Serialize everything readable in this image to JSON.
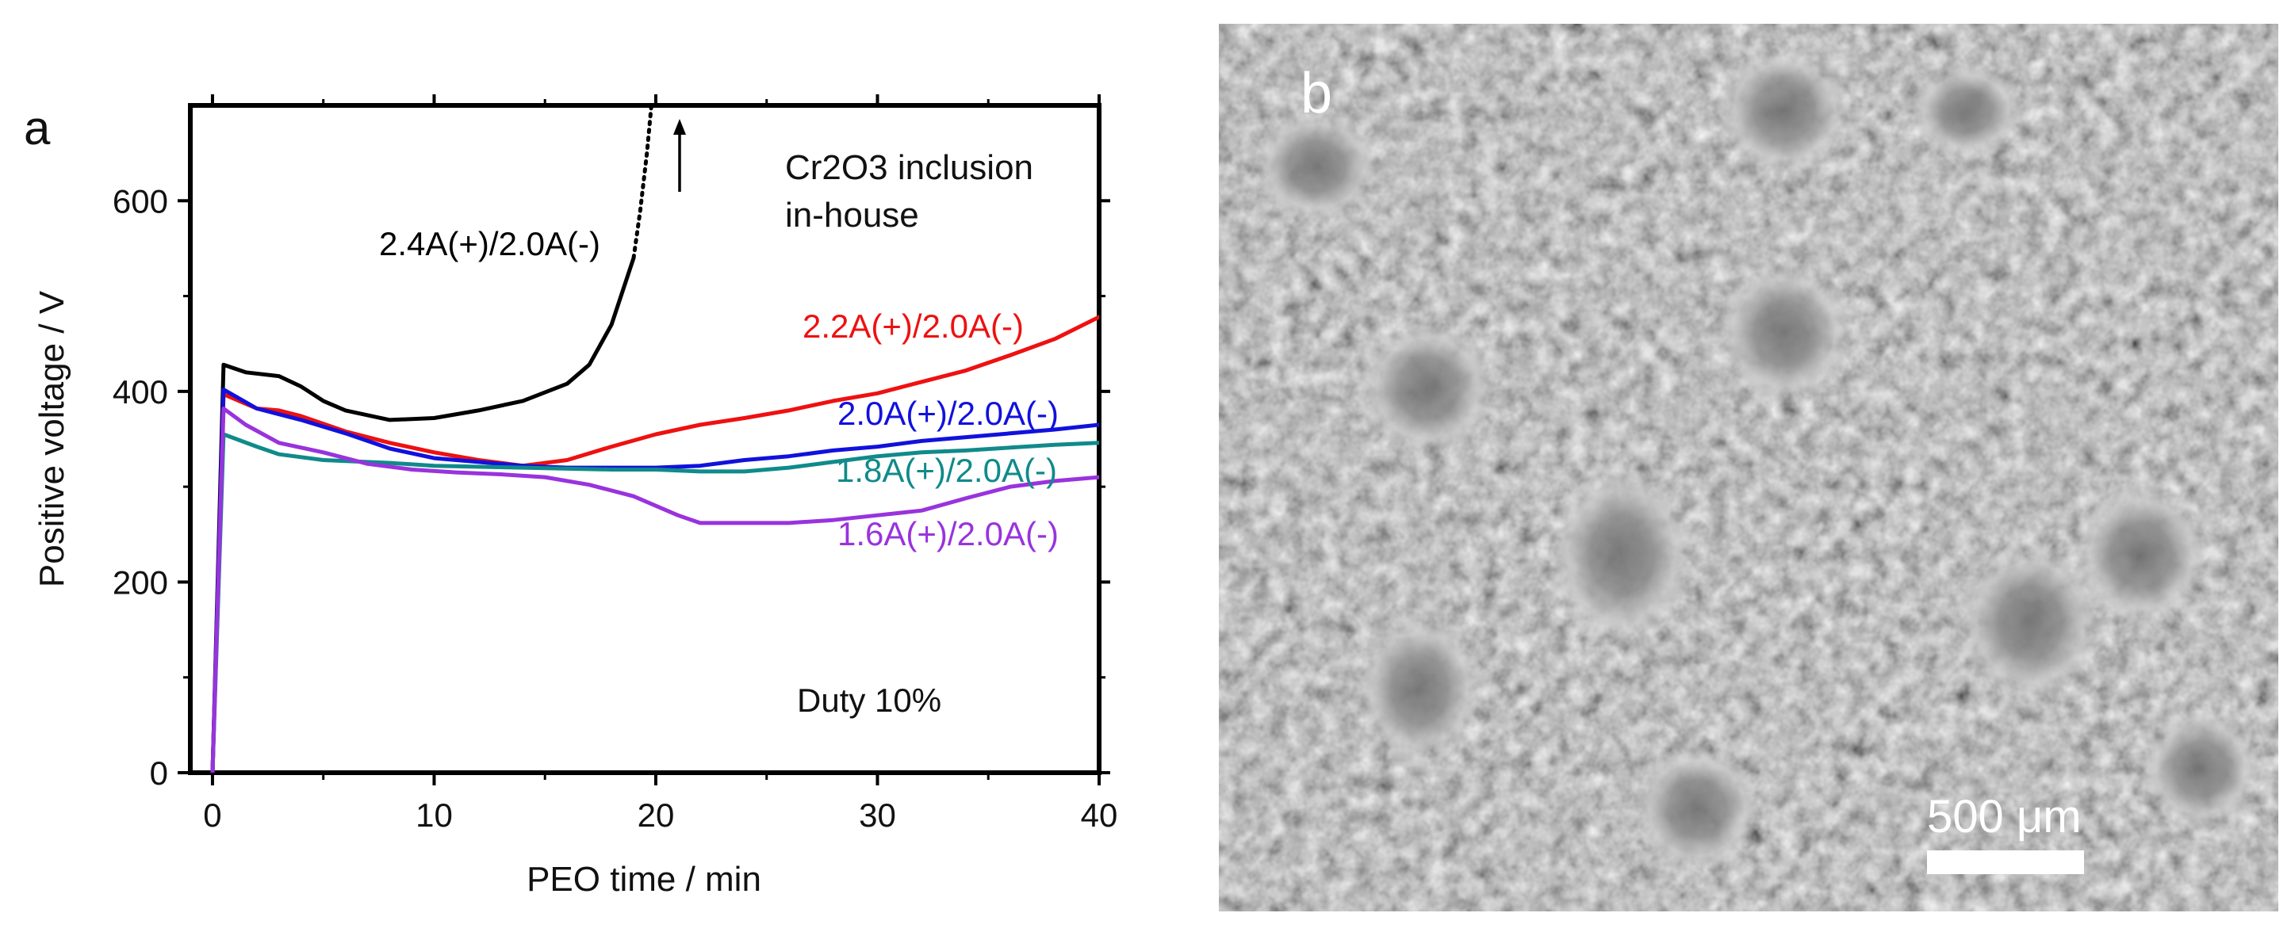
{
  "panel_a": {
    "label": "a",
    "annotation_material": [
      "Cr2O3 inclusion",
      "in-house"
    ],
    "annotation_duty": "Duty 10%"
  },
  "panel_b": {
    "label": "b",
    "scale_bar_label": "500 μm"
  },
  "chart_data": {
    "type": "line",
    "title": "",
    "xlabel": "PEO time / min",
    "ylabel": "Positive voltage / V",
    "xlim": [
      -1,
      40
    ],
    "ylim": [
      0,
      700
    ],
    "xticks": [
      0,
      10,
      20,
      30,
      40
    ],
    "yticks": [
      0,
      200,
      400,
      600
    ],
    "grid": false,
    "legend": "inline labels",
    "series": [
      {
        "name": "2.4A(+)/2.0A(-)",
        "color": "#000000",
        "points": [
          [
            0,
            0
          ],
          [
            0.5,
            428
          ],
          [
            1.5,
            420
          ],
          [
            3,
            416
          ],
          [
            4,
            405
          ],
          [
            5,
            390
          ],
          [
            6,
            380
          ],
          [
            8,
            370
          ],
          [
            10,
            372
          ],
          [
            12,
            380
          ],
          [
            14,
            390
          ],
          [
            16,
            408
          ],
          [
            17,
            428
          ],
          [
            18,
            470
          ],
          [
            19,
            540
          ]
        ],
        "extension_dotted": [
          [
            19,
            540
          ],
          [
            19.3,
            590
          ],
          [
            19.6,
            650
          ],
          [
            19.8,
            700
          ]
        ]
      },
      {
        "name": "2.2A(+)/2.0A(-)",
        "color": "#ee1111",
        "points": [
          [
            0,
            0
          ],
          [
            0.5,
            397
          ],
          [
            2,
            382
          ],
          [
            3,
            380
          ],
          [
            4,
            374
          ],
          [
            6,
            358
          ],
          [
            8,
            346
          ],
          [
            10,
            336
          ],
          [
            12,
            328
          ],
          [
            14,
            322
          ],
          [
            16,
            328
          ],
          [
            18,
            342
          ],
          [
            20,
            355
          ],
          [
            22,
            365
          ],
          [
            24,
            372
          ],
          [
            26,
            380
          ],
          [
            28,
            390
          ],
          [
            30,
            398
          ],
          [
            32,
            410
          ],
          [
            34,
            422
          ],
          [
            36,
            438
          ],
          [
            38,
            455
          ],
          [
            40,
            478
          ]
        ]
      },
      {
        "name": "2.0A(+)/2.0A(-)",
        "color": "#1111dd",
        "points": [
          [
            0,
            0
          ],
          [
            0.5,
            402
          ],
          [
            2,
            382
          ],
          [
            4,
            370
          ],
          [
            6,
            356
          ],
          [
            8,
            340
          ],
          [
            10,
            330
          ],
          [
            12,
            326
          ],
          [
            14,
            322
          ],
          [
            16,
            320
          ],
          [
            18,
            320
          ],
          [
            20,
            320
          ],
          [
            22,
            322
          ],
          [
            24,
            328
          ],
          [
            26,
            332
          ],
          [
            28,
            338
          ],
          [
            30,
            342
          ],
          [
            32,
            348
          ],
          [
            34,
            352
          ],
          [
            36,
            356
          ],
          [
            38,
            360
          ],
          [
            40,
            365
          ]
        ]
      },
      {
        "name": "1.8A(+)/2.0A(-)",
        "color": "#108a8a",
        "points": [
          [
            0,
            0
          ],
          [
            0.5,
            355
          ],
          [
            2,
            342
          ],
          [
            3,
            334
          ],
          [
            5,
            328
          ],
          [
            8,
            325
          ],
          [
            10,
            322
          ],
          [
            14,
            320
          ],
          [
            18,
            318
          ],
          [
            20,
            318
          ],
          [
            22,
            316
          ],
          [
            24,
            316
          ],
          [
            26,
            320
          ],
          [
            28,
            326
          ],
          [
            30,
            332
          ],
          [
            32,
            336
          ],
          [
            34,
            338
          ],
          [
            36,
            341
          ],
          [
            38,
            344
          ],
          [
            40,
            346
          ]
        ]
      },
      {
        "name": "1.6A(+)/2.0A(-)",
        "color": "#9933dd",
        "points": [
          [
            0,
            0
          ],
          [
            0.5,
            382
          ],
          [
            1.5,
            365
          ],
          [
            3,
            346
          ],
          [
            5,
            336
          ],
          [
            7,
            324
          ],
          [
            9,
            318
          ],
          [
            11,
            315
          ],
          [
            13,
            313
          ],
          [
            15,
            310
          ],
          [
            17,
            302
          ],
          [
            19,
            290
          ],
          [
            21,
            270
          ],
          [
            22,
            262
          ],
          [
            24,
            262
          ],
          [
            26,
            262
          ],
          [
            28,
            265
          ],
          [
            30,
            270
          ],
          [
            32,
            275
          ],
          [
            34,
            288
          ],
          [
            36,
            300
          ],
          [
            38,
            306
          ],
          [
            40,
            310
          ]
        ]
      }
    ]
  }
}
